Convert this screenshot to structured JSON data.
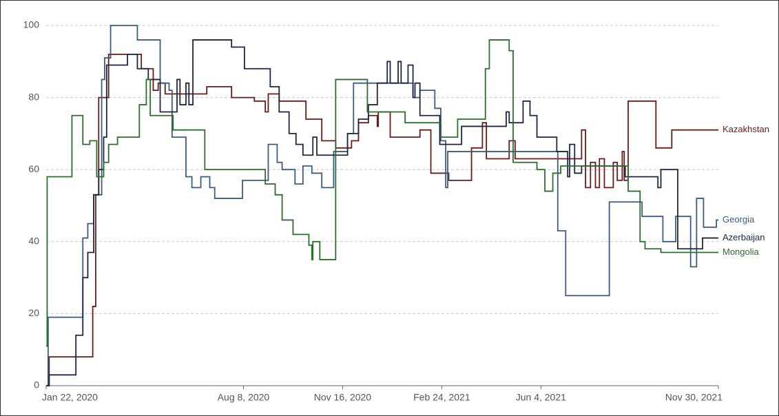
{
  "chart_data": {
    "type": "line",
    "step": "after",
    "ylim": [
      0,
      100
    ],
    "yticks": [
      0,
      20,
      40,
      60,
      80,
      100
    ],
    "grid": true,
    "xlim": [
      "2020-01-22",
      "2021-11-30"
    ],
    "xticks": [
      {
        "value": "2020-01-22",
        "label": "Jan 22, 2020"
      },
      {
        "value": "2020-08-08",
        "label": "Aug 8, 2020"
      },
      {
        "value": "2020-11-16",
        "label": "Nov 16, 2020"
      },
      {
        "value": "2021-02-24",
        "label": "Feb 24, 2021"
      },
      {
        "value": "2021-06-04",
        "label": "Jun 4, 2021"
      },
      {
        "value": "2021-11-30",
        "label": "Nov 30, 2021"
      }
    ],
    "series": [
      {
        "name": "Kazakhstan",
        "color": "#6b1a1a",
        "x": [
          "2020-01-22",
          "2020-01-25",
          "2020-03-09",
          "2020-03-12",
          "2020-03-15",
          "2020-03-25",
          "2020-04-27",
          "2020-05-09",
          "2020-05-14",
          "2020-05-21",
          "2020-07-02",
          "2020-07-27",
          "2020-08-19",
          "2020-08-30",
          "2020-09-02",
          "2020-09-13",
          "2020-10-10",
          "2020-10-26",
          "2020-11-09",
          "2020-11-25",
          "2020-12-02",
          "2020-12-12",
          "2020-12-21",
          "2020-12-22",
          "2021-01-03",
          "2021-02-02",
          "2021-02-13",
          "2021-03-03",
          "2021-03-26",
          "2021-04-06",
          "2021-04-10",
          "2021-05-03",
          "2021-05-09",
          "2021-07-15",
          "2021-07-19",
          "2021-07-24",
          "2021-07-29",
          "2021-08-02",
          "2021-08-07",
          "2021-08-16",
          "2021-08-20",
          "2021-08-25",
          "2021-08-27",
          "2021-08-31",
          "2021-09-28",
          "2021-10-14",
          "2021-11-30"
        ],
        "values": [
          0,
          8,
          22,
          53,
          80,
          92,
          88,
          82,
          84,
          81,
          83,
          80,
          79,
          76,
          81,
          79,
          74,
          68,
          66,
          68,
          73,
          75,
          72,
          76,
          69,
          71,
          59,
          57,
          66,
          73,
          63,
          68,
          63,
          71,
          55,
          62,
          55,
          63,
          55,
          62,
          57,
          65,
          57,
          79,
          66,
          71,
          71
        ]
      },
      {
        "name": "Georgia",
        "color": "#3b5b82",
        "x": [
          "2020-01-22",
          "2020-01-24",
          "2020-02-28",
          "2020-03-04",
          "2020-03-10",
          "2020-03-18",
          "2020-03-21",
          "2020-03-27",
          "2020-04-23",
          "2020-05-16",
          "2020-05-25",
          "2020-05-28",
          "2020-06-11",
          "2020-06-17",
          "2020-06-26",
          "2020-07-05",
          "2020-07-10",
          "2020-08-07",
          "2020-09-02",
          "2020-09-11",
          "2020-09-16",
          "2020-09-29",
          "2020-10-07",
          "2020-10-16",
          "2020-10-26",
          "2020-11-07",
          "2020-11-21",
          "2020-11-27",
          "2021-01-26",
          "2021-02-02",
          "2021-02-17",
          "2021-02-23",
          "2021-02-28",
          "2021-03-02",
          "2021-06-21",
          "2021-06-29",
          "2021-08-12",
          "2021-09-14",
          "2021-10-05",
          "2021-10-18",
          "2021-11-02",
          "2021-11-08",
          "2021-11-15",
          "2021-11-28",
          "2021-11-30"
        ],
        "values": [
          0,
          19,
          41,
          45,
          53,
          85,
          91,
          100,
          96,
          84,
          82,
          69,
          58,
          55,
          58,
          55,
          52,
          57,
          67,
          62,
          60,
          56,
          61,
          59,
          55,
          65,
          70,
          84,
          80,
          82,
          77,
          68,
          55,
          65,
          43,
          25,
          51,
          47,
          40,
          47,
          33,
          52,
          44,
          46,
          46
        ]
      },
      {
        "name": "Azerbaijan",
        "color": "#1c2640",
        "x": [
          "2020-01-22",
          "2020-01-25",
          "2020-02-21",
          "2020-02-28",
          "2020-03-04",
          "2020-03-10",
          "2020-03-15",
          "2020-03-20",
          "2020-03-23",
          "2020-04-13",
          "2020-04-23",
          "2020-05-04",
          "2020-05-16",
          "2020-06-02",
          "2020-06-05",
          "2020-06-11",
          "2020-06-14",
          "2020-06-18",
          "2020-07-27",
          "2020-08-09",
          "2020-09-04",
          "2020-09-13",
          "2020-09-23",
          "2020-09-30",
          "2020-10-07",
          "2020-10-17",
          "2020-10-21",
          "2020-11-21",
          "2020-12-02",
          "2020-12-12",
          "2020-12-21",
          "2020-12-31",
          "2021-01-03",
          "2021-01-11",
          "2021-01-14",
          "2021-01-21",
          "2021-01-26",
          "2021-01-28",
          "2021-02-02",
          "2021-02-22",
          "2021-03-16",
          "2021-04-30",
          "2021-05-03",
          "2021-05-17",
          "2021-05-24",
          "2021-05-31",
          "2021-06-20",
          "2021-07-01",
          "2021-07-03",
          "2021-07-08",
          "2021-07-15",
          "2021-08-28",
          "2021-09-30",
          "2021-10-03",
          "2021-10-20",
          "2021-11-14",
          "2021-11-30"
        ],
        "values": [
          0,
          3,
          14,
          30,
          37,
          53,
          60,
          69,
          89,
          92,
          88,
          85,
          76,
          85,
          78,
          84,
          78,
          96,
          94,
          88,
          83,
          76,
          70,
          67,
          64,
          69,
          64,
          70,
          74,
          78,
          84,
          90,
          84,
          90,
          84,
          89,
          80,
          84,
          75,
          67,
          72,
          76,
          73,
          79,
          75,
          69,
          65,
          58,
          67,
          59,
          61,
          58,
          55,
          60,
          38,
          41,
          41
        ]
      },
      {
        "name": "Mongolia",
        "color": "#2c6e2c",
        "x": [
          "2020-01-22",
          "2020-01-23",
          "2020-02-17",
          "2020-02-28",
          "2020-03-06",
          "2020-03-13",
          "2020-03-20",
          "2020-03-25",
          "2020-04-03",
          "2020-04-25",
          "2020-05-02",
          "2020-05-06",
          "2020-05-29",
          "2020-06-30",
          "2020-08-30",
          "2020-09-09",
          "2020-09-16",
          "2020-09-27",
          "2020-10-13",
          "2020-10-16",
          "2020-10-17",
          "2020-10-24",
          "2020-11-09",
          "2020-12-11",
          "2021-01-18",
          "2021-02-23",
          "2021-03-12",
          "2021-04-09",
          "2021-04-13",
          "2021-05-03",
          "2021-05-07",
          "2021-05-31",
          "2021-06-08",
          "2021-06-16",
          "2021-06-24",
          "2021-08-31",
          "2021-09-12",
          "2021-09-17",
          "2021-10-03",
          "2021-11-30"
        ],
        "values": [
          11,
          58,
          75,
          67,
          68,
          58,
          62,
          67,
          69,
          78,
          85,
          75,
          71,
          60,
          56,
          53,
          46,
          42,
          39,
          35,
          40,
          35,
          85,
          76,
          73,
          69,
          74,
          88,
          96,
          93,
          62,
          60,
          54,
          59,
          61,
          54,
          40,
          38,
          37,
          37
        ]
      }
    ]
  }
}
